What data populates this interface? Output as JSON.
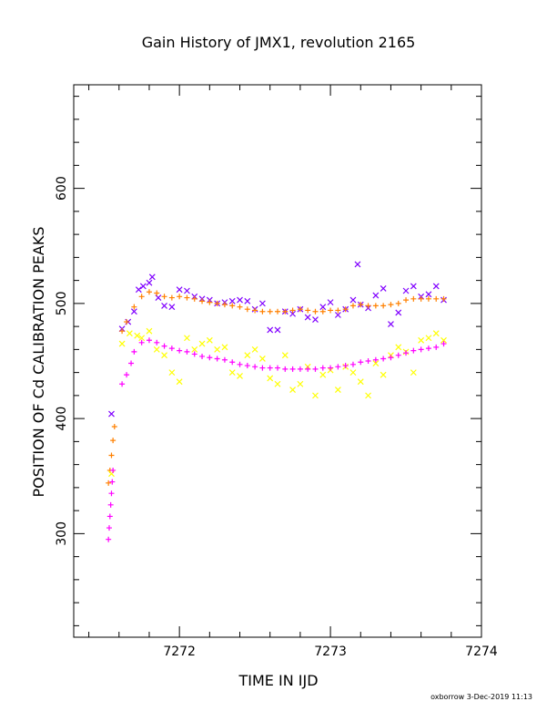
{
  "chart_data": {
    "type": "scatter",
    "title": "Gain History of JMX1, revolution 2165",
    "xlabel": "TIME IN IJD",
    "ylabel": "POSITION OF Cd CALIBRATION PEAKS",
    "xlim": [
      7271.3,
      7274.0
    ],
    "ylim": [
      210,
      690
    ],
    "x_ticks": [
      "7272",
      "7273",
      "7274"
    ],
    "y_ticks": [
      "300",
      "400",
      "500",
      "600"
    ],
    "grid": false,
    "series": [
      {
        "marker": "x",
        "color": "#8000ff",
        "points": [
          [
            7271.55,
            404
          ],
          [
            7271.62,
            478
          ],
          [
            7271.66,
            484
          ],
          [
            7271.7,
            493
          ],
          [
            7271.73,
            512
          ],
          [
            7271.76,
            515
          ],
          [
            7271.8,
            518
          ],
          [
            7271.82,
            523
          ],
          [
            7271.86,
            505
          ],
          [
            7271.9,
            498
          ],
          [
            7271.95,
            497
          ],
          [
            7272.0,
            512
          ],
          [
            7272.05,
            511
          ],
          [
            7272.1,
            506
          ],
          [
            7272.15,
            504
          ],
          [
            7272.2,
            503
          ],
          [
            7272.25,
            500
          ],
          [
            7272.3,
            501
          ],
          [
            7272.35,
            502
          ],
          [
            7272.4,
            503
          ],
          [
            7272.45,
            502
          ],
          [
            7272.5,
            495
          ],
          [
            7272.55,
            500
          ],
          [
            7272.6,
            477
          ],
          [
            7272.65,
            477
          ],
          [
            7272.7,
            493
          ],
          [
            7272.75,
            491
          ],
          [
            7272.8,
            495
          ],
          [
            7272.85,
            488
          ],
          [
            7272.9,
            486
          ],
          [
            7272.95,
            497
          ],
          [
            7273.0,
            501
          ],
          [
            7273.05,
            490
          ],
          [
            7273.1,
            495
          ],
          [
            7273.15,
            503
          ],
          [
            7273.18,
            534
          ],
          [
            7273.2,
            499
          ],
          [
            7273.25,
            496
          ],
          [
            7273.3,
            507
          ],
          [
            7273.35,
            513
          ],
          [
            7273.4,
            482
          ],
          [
            7273.45,
            492
          ],
          [
            7273.5,
            511
          ],
          [
            7273.55,
            515
          ],
          [
            7273.6,
            506
          ],
          [
            7273.65,
            508
          ],
          [
            7273.7,
            515
          ],
          [
            7273.75,
            503
          ]
        ]
      },
      {
        "marker": "plus",
        "color": "#ff8000",
        "points": [
          [
            7271.53,
            344
          ],
          [
            7271.54,
            355
          ],
          [
            7271.55,
            368
          ],
          [
            7271.56,
            381
          ],
          [
            7271.57,
            393
          ],
          [
            7271.62,
            476
          ],
          [
            7271.65,
            484
          ],
          [
            7271.7,
            497
          ],
          [
            7271.75,
            506
          ],
          [
            7271.8,
            510
          ],
          [
            7271.85,
            509
          ],
          [
            7271.9,
            506
          ],
          [
            7271.95,
            505
          ],
          [
            7272.0,
            506
          ],
          [
            7272.05,
            505
          ],
          [
            7272.1,
            504
          ],
          [
            7272.15,
            502
          ],
          [
            7272.2,
            501
          ],
          [
            7272.25,
            500
          ],
          [
            7272.3,
            499
          ],
          [
            7272.35,
            498
          ],
          [
            7272.4,
            497
          ],
          [
            7272.45,
            495
          ],
          [
            7272.5,
            494
          ],
          [
            7272.55,
            493
          ],
          [
            7272.6,
            493
          ],
          [
            7272.65,
            493
          ],
          [
            7272.7,
            493
          ],
          [
            7272.75,
            494
          ],
          [
            7272.8,
            495
          ],
          [
            7272.85,
            494
          ],
          [
            7272.9,
            493
          ],
          [
            7272.95,
            493
          ],
          [
            7273.0,
            494
          ],
          [
            7273.05,
            494
          ],
          [
            7273.1,
            495
          ],
          [
            7273.15,
            498
          ],
          [
            7273.2,
            499
          ],
          [
            7273.25,
            498
          ],
          [
            7273.3,
            498
          ],
          [
            7273.35,
            498
          ],
          [
            7273.4,
            499
          ],
          [
            7273.45,
            500
          ],
          [
            7273.5,
            503
          ],
          [
            7273.55,
            504
          ],
          [
            7273.6,
            504
          ],
          [
            7273.65,
            504
          ],
          [
            7273.7,
            504
          ],
          [
            7273.75,
            504
          ]
        ]
      },
      {
        "marker": "x",
        "color": "#ffff00",
        "points": [
          [
            7271.55,
            352
          ],
          [
            7271.62,
            465
          ],
          [
            7271.67,
            474
          ],
          [
            7271.72,
            472
          ],
          [
            7271.75,
            470
          ],
          [
            7271.8,
            476
          ],
          [
            7271.85,
            460
          ],
          [
            7271.9,
            455
          ],
          [
            7271.95,
            440
          ],
          [
            7272.0,
            432
          ],
          [
            7272.05,
            470
          ],
          [
            7272.1,
            460
          ],
          [
            7272.15,
            465
          ],
          [
            7272.2,
            468
          ],
          [
            7272.25,
            460
          ],
          [
            7272.3,
            462
          ],
          [
            7272.35,
            440
          ],
          [
            7272.4,
            437
          ],
          [
            7272.45,
            455
          ],
          [
            7272.5,
            460
          ],
          [
            7272.55,
            452
          ],
          [
            7272.6,
            435
          ],
          [
            7272.65,
            430
          ],
          [
            7272.7,
            455
          ],
          [
            7272.75,
            425
          ],
          [
            7272.8,
            430
          ],
          [
            7272.85,
            445
          ],
          [
            7272.9,
            420
          ],
          [
            7272.95,
            438
          ],
          [
            7273.0,
            442
          ],
          [
            7273.05,
            425
          ],
          [
            7273.1,
            445
          ],
          [
            7273.15,
            440
          ],
          [
            7273.2,
            432
          ],
          [
            7273.25,
            420
          ],
          [
            7273.3,
            448
          ],
          [
            7273.35,
            438
          ],
          [
            7273.4,
            455
          ],
          [
            7273.45,
            462
          ],
          [
            7273.5,
            458
          ],
          [
            7273.55,
            440
          ],
          [
            7273.6,
            468
          ],
          [
            7273.65,
            470
          ],
          [
            7273.7,
            474
          ],
          [
            7273.75,
            468
          ]
        ]
      },
      {
        "marker": "plus",
        "color": "#ff00ff",
        "points": [
          [
            7271.53,
            295
          ],
          [
            7271.535,
            305
          ],
          [
            7271.54,
            315
          ],
          [
            7271.545,
            325
          ],
          [
            7271.55,
            335
          ],
          [
            7271.555,
            345
          ],
          [
            7271.56,
            355
          ],
          [
            7271.62,
            430
          ],
          [
            7271.65,
            438
          ],
          [
            7271.68,
            448
          ],
          [
            7271.7,
            458
          ],
          [
            7271.75,
            466
          ],
          [
            7271.8,
            468
          ],
          [
            7271.85,
            466
          ],
          [
            7271.9,
            463
          ],
          [
            7271.95,
            461
          ],
          [
            7272.0,
            459
          ],
          [
            7272.05,
            458
          ],
          [
            7272.1,
            456
          ],
          [
            7272.15,
            454
          ],
          [
            7272.2,
            453
          ],
          [
            7272.25,
            452
          ],
          [
            7272.3,
            451
          ],
          [
            7272.35,
            449
          ],
          [
            7272.4,
            447
          ],
          [
            7272.45,
            446
          ],
          [
            7272.5,
            445
          ],
          [
            7272.55,
            444
          ],
          [
            7272.6,
            444
          ],
          [
            7272.65,
            444
          ],
          [
            7272.7,
            443
          ],
          [
            7272.75,
            443
          ],
          [
            7272.8,
            443
          ],
          [
            7272.85,
            443
          ],
          [
            7272.9,
            443
          ],
          [
            7272.95,
            444
          ],
          [
            7273.0,
            444
          ],
          [
            7273.05,
            445
          ],
          [
            7273.1,
            446
          ],
          [
            7273.15,
            447
          ],
          [
            7273.2,
            449
          ],
          [
            7273.25,
            450
          ],
          [
            7273.3,
            451
          ],
          [
            7273.35,
            452
          ],
          [
            7273.4,
            453
          ],
          [
            7273.45,
            455
          ],
          [
            7273.5,
            457
          ],
          [
            7273.55,
            459
          ],
          [
            7273.6,
            460
          ],
          [
            7273.65,
            461
          ],
          [
            7273.7,
            462
          ],
          [
            7273.75,
            465
          ]
        ]
      }
    ]
  },
  "footer": {
    "credit": "oxborrow  3-Dec-2019 11:13"
  }
}
